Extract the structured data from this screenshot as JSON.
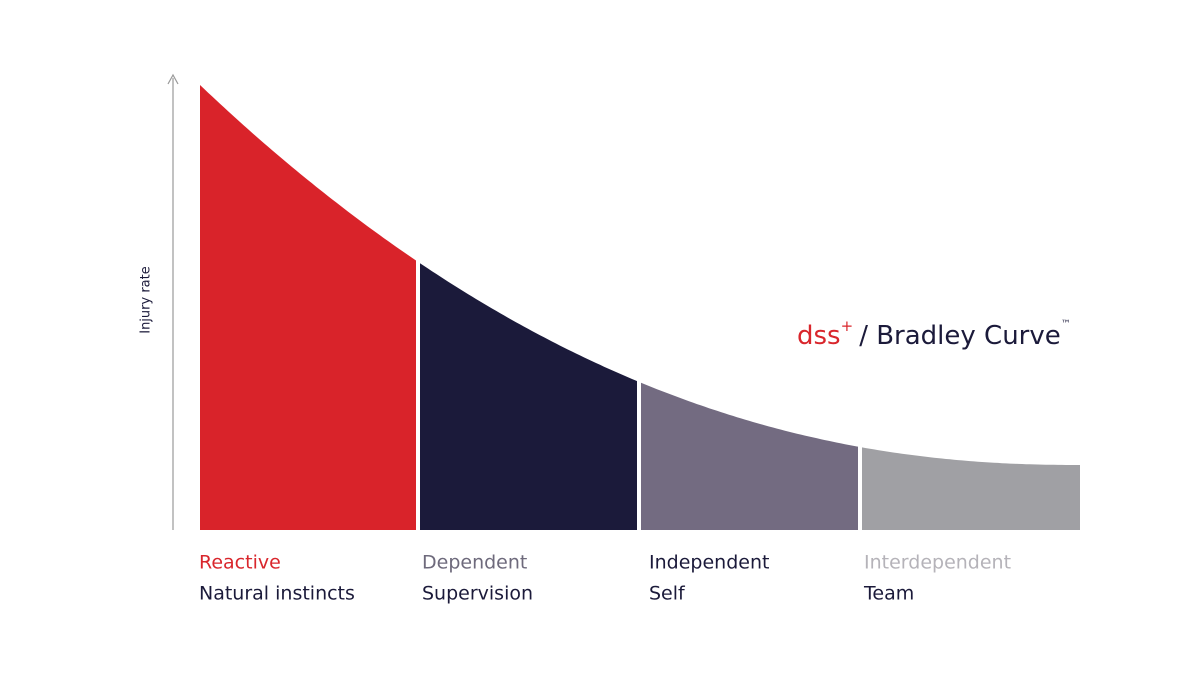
{
  "axis_label": "Injury rate",
  "brand": {
    "name": "dss",
    "mark": "+",
    "title": "/ Bradley Curve",
    "trademark": "™"
  },
  "stages": [
    {
      "name": "Reactive",
      "description": "Natural instincts"
    },
    {
      "name": "Dependent",
      "description": "Supervision"
    },
    {
      "name": "Independent",
      "description": "Self"
    },
    {
      "name": "Interdependent",
      "description": "Team"
    }
  ]
}
